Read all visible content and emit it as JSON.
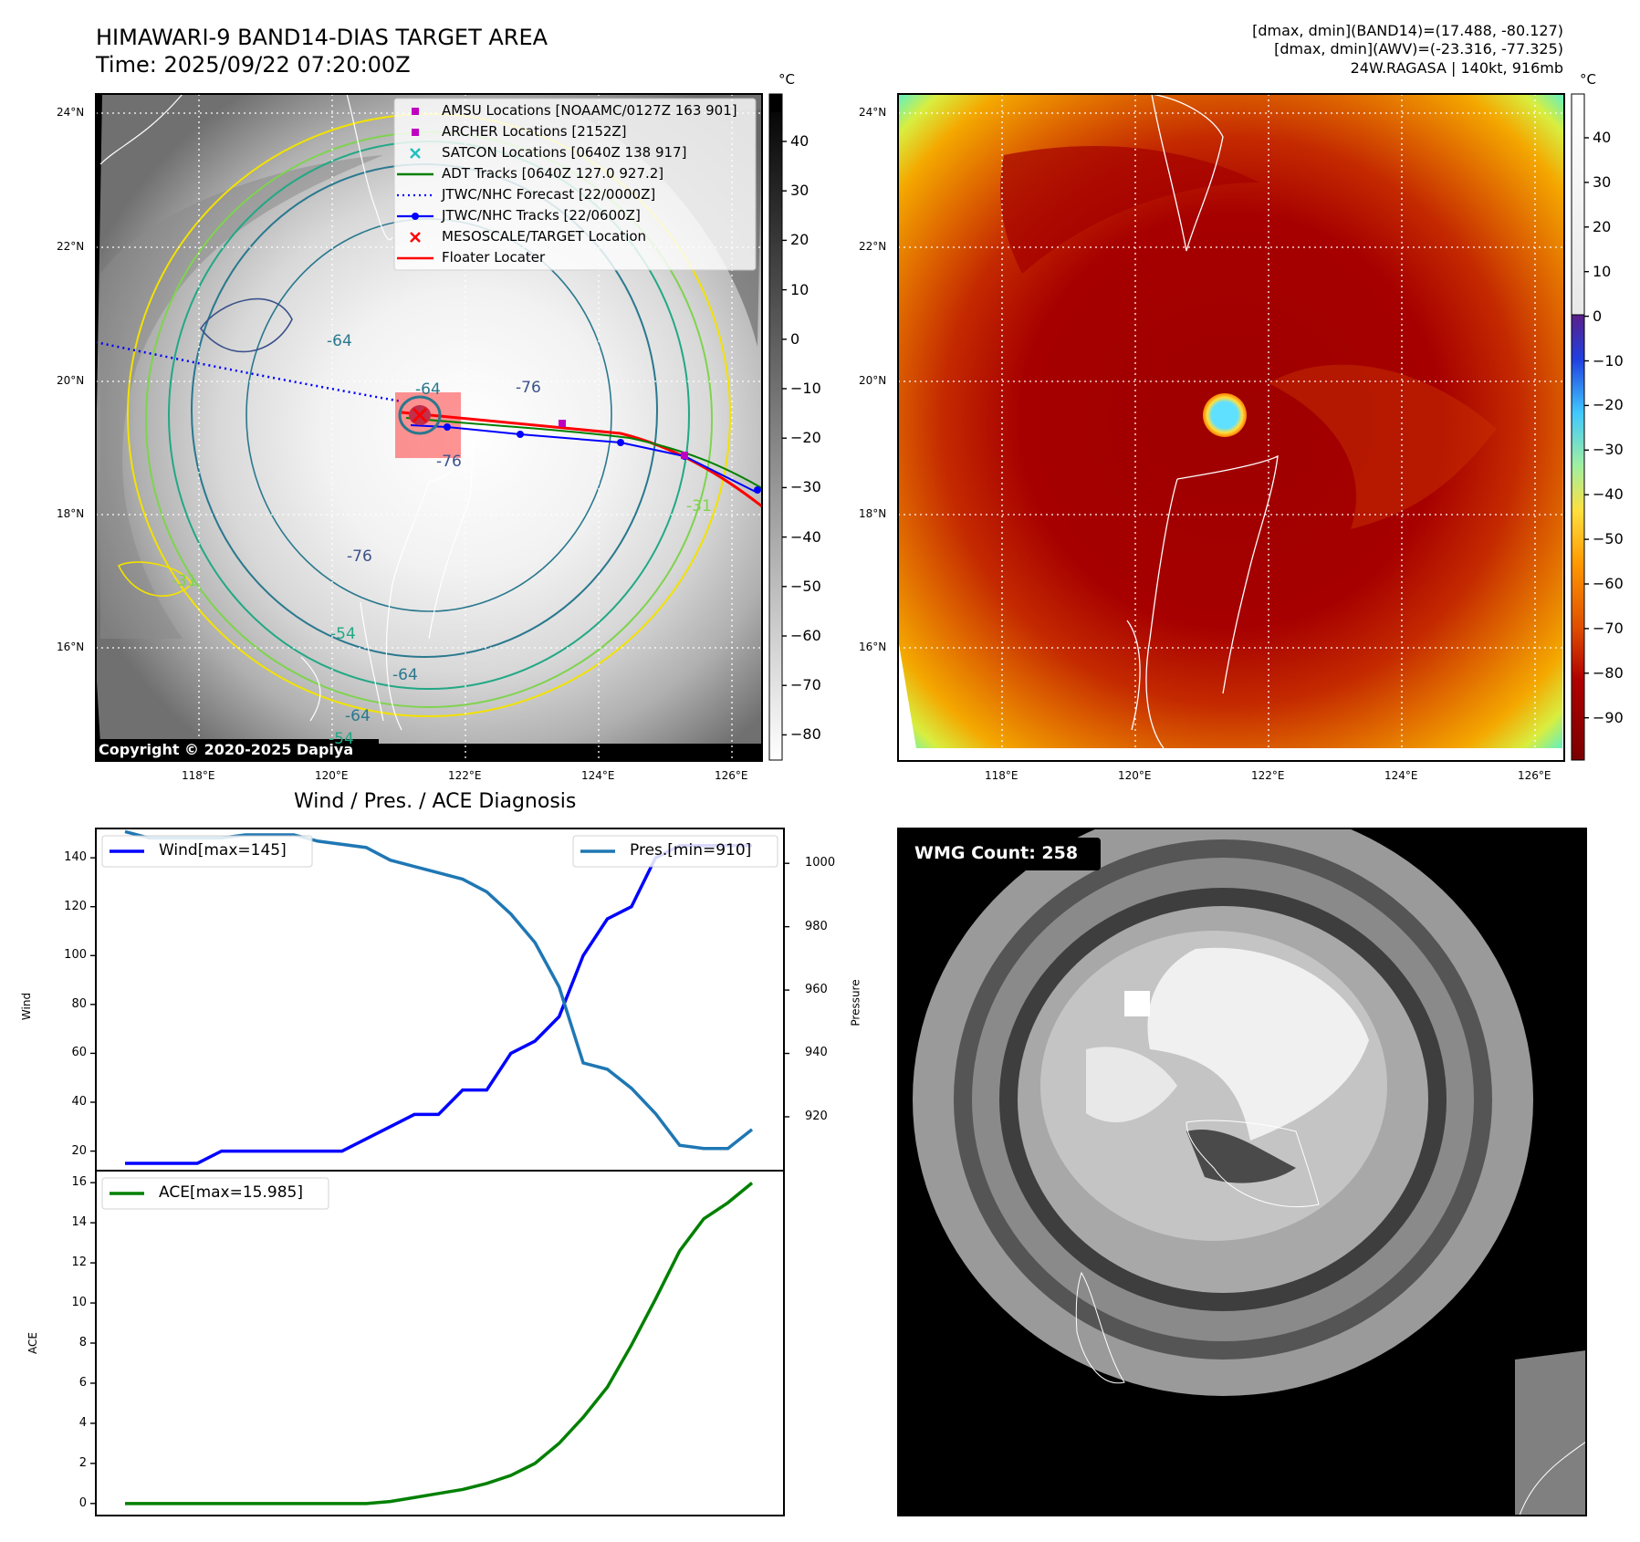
{
  "header": {
    "title_line1": "HIMAWARI-9 BAND14-DIAS TARGET AREA",
    "title_line2": "Time: 2025/09/22 07:20:00Z",
    "info_line1": "[dmax, dmin](BAND14)=(17.488, -80.127)",
    "info_line2": "[dmax, dmin](AWV)=(-23.316, -77.325)",
    "info_line3": "24W.RAGASA | 140kt, 916mb"
  },
  "map_axes": {
    "lon_ticks": [
      "118°E",
      "120°E",
      "122°E",
      "124°E",
      "126°E"
    ],
    "lat_ticks": [
      "24°N",
      "22°N",
      "20°N",
      "18°N",
      "16°N"
    ]
  },
  "ir_panel": {
    "copyright": "Copyright © 2020-2025 Dapiya",
    "colorbar_unit": "°C",
    "colorbar_ticks": [
      "40",
      "30",
      "20",
      "10",
      "0",
      "−10",
      "−20",
      "−30",
      "−40",
      "−50",
      "−60",
      "−70",
      "−80"
    ],
    "contour_labels": [
      "-64",
      "-64",
      "-76",
      "-76",
      "-64",
      "-64",
      "-54",
      "-54",
      "-31",
      "-31",
      "-76"
    ],
    "legend": [
      {
        "label": "AMSU Locations [NOAAMC/0127Z 163 901]",
        "marker": "square",
        "color": "#c000c0"
      },
      {
        "label": "ARCHER Locations [2152Z]",
        "marker": "square",
        "color": "#c000c0"
      },
      {
        "label": "SATCON Locations [0640Z 138 917]",
        "marker": "x",
        "color": "#20c0c0"
      },
      {
        "label": "ADT Tracks [0640Z 127.0 927.2]",
        "marker": "line",
        "color": "#008000"
      },
      {
        "label": "JTWC/NHC Forecast [22/0000Z]",
        "marker": "dotted",
        "color": "#0000ff"
      },
      {
        "label": "JTWC/NHC Tracks [22/0600Z]",
        "marker": "line-dot",
        "color": "#0000ff"
      },
      {
        "label": "MESOSCALE/TARGET Location",
        "marker": "x",
        "color": "#ff0000"
      },
      {
        "label": "Floater Locater",
        "marker": "line",
        "color": "#ff0000"
      }
    ]
  },
  "color_panel": {
    "colorbar_unit": "°C",
    "colorbar_ticks": [
      "40",
      "30",
      "20",
      "10",
      "0",
      "−10",
      "−20",
      "−30",
      "−40",
      "−50",
      "−60",
      "−70",
      "−80",
      "−90"
    ]
  },
  "wmg_panel": {
    "label": "WMG Count: 258"
  },
  "colors": {
    "wind": "#0000ff",
    "pressure": "#1f77b4",
    "ace": "#008000",
    "floater": "#ff0000",
    "forecast": "#0000ff"
  },
  "chart_data": [
    {
      "type": "line",
      "title": "Wind / Pres. / ACE Diagnosis",
      "ylabel": "Wind",
      "y2label": "Pressure",
      "ylim": [
        12,
        152
      ],
      "y2lim": [
        903,
        1011
      ],
      "yticks": [
        20,
        40,
        60,
        80,
        100,
        120,
        140
      ],
      "y2ticks": [
        920,
        940,
        960,
        980,
        1000
      ],
      "series": [
        {
          "name": "Wind[max=145]",
          "axis": "left",
          "values": [
            15,
            15,
            15,
            15,
            20,
            20,
            20,
            20,
            20,
            20,
            25,
            30,
            35,
            35,
            45,
            45,
            60,
            65,
            75,
            100,
            115,
            120,
            140,
            145,
            145,
            145,
            145
          ]
        },
        {
          "name": "Pres.[min=910]",
          "axis": "right",
          "values": [
            1010,
            1008,
            1008,
            1008,
            1008,
            1009,
            1009,
            1009,
            1007,
            1006,
            1005,
            1001,
            999,
            997,
            995,
            991,
            984,
            975,
            961,
            937,
            935,
            929,
            921,
            911,
            910,
            910,
            916
          ]
        }
      ]
    },
    {
      "type": "line",
      "ylabel": "ACE",
      "ylim": [
        -0.6,
        16.6
      ],
      "yticks": [
        0,
        2,
        4,
        6,
        8,
        10,
        12,
        14,
        16
      ],
      "series": [
        {
          "name": "ACE[max=15.985]",
          "values": [
            0,
            0,
            0,
            0,
            0,
            0,
            0,
            0,
            0,
            0,
            0,
            0.1,
            0.3,
            0.5,
            0.7,
            1.0,
            1.4,
            2.0,
            3.0,
            4.3,
            5.8,
            7.9,
            10.2,
            12.6,
            14.2,
            15.0,
            15.985
          ]
        }
      ]
    }
  ]
}
